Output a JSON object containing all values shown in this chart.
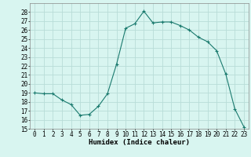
{
  "x": [
    0,
    1,
    2,
    3,
    4,
    5,
    6,
    7,
    8,
    9,
    10,
    11,
    12,
    13,
    14,
    15,
    16,
    17,
    18,
    19,
    20,
    21,
    22,
    23
  ],
  "y": [
    19.0,
    18.9,
    18.9,
    18.2,
    17.7,
    16.5,
    16.6,
    17.5,
    18.9,
    22.2,
    26.2,
    26.7,
    28.1,
    26.8,
    26.9,
    26.9,
    26.5,
    26.0,
    25.2,
    24.7,
    23.7,
    21.1,
    17.2,
    15.2
  ],
  "line_color": "#1a7a6e",
  "marker": "+",
  "marker_size": 3,
  "bg_color": "#d8f5f0",
  "grid_color": "#b8ddd8",
  "xlabel": "Humidex (Indice chaleur)",
  "xlim": [
    -0.5,
    23.5
  ],
  "ylim": [
    15,
    29
  ],
  "yticks": [
    15,
    16,
    17,
    18,
    19,
    20,
    21,
    22,
    23,
    24,
    25,
    26,
    27,
    28
  ],
  "xticks": [
    0,
    1,
    2,
    3,
    4,
    5,
    6,
    7,
    8,
    9,
    10,
    11,
    12,
    13,
    14,
    15,
    16,
    17,
    18,
    19,
    20,
    21,
    22,
    23
  ],
  "xlabel_fontsize": 6.5,
  "tick_fontsize": 5.5
}
